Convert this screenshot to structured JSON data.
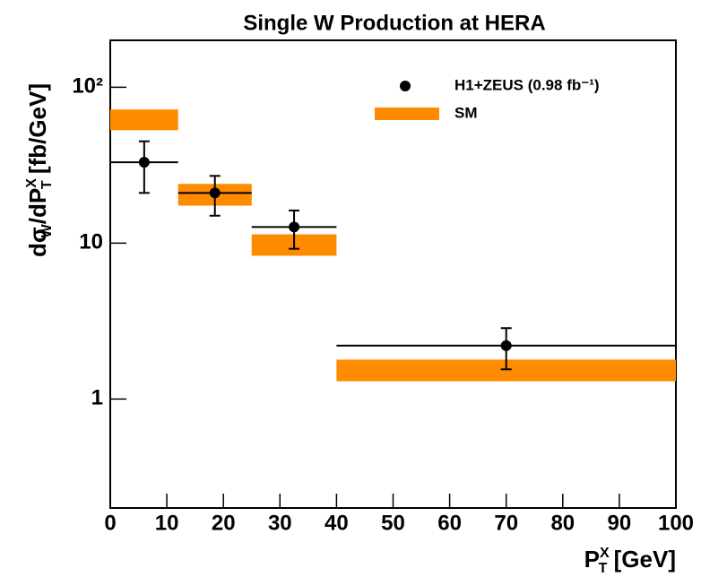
{
  "chart_data": {
    "type": "errorbar",
    "title": "Single W Production at HERA",
    "x_label": [
      {
        "text": "P"
      },
      {
        "text": "X",
        "role": "sup"
      },
      {
        "text": "T",
        "role": "sub"
      },
      {
        "text": " [GeV]"
      }
    ],
    "y_label": [
      {
        "text": "dσ"
      },
      {
        "text": "W",
        "role": "sub"
      },
      {
        "text": "/dP"
      },
      {
        "text": "X",
        "role": "sup"
      },
      {
        "text": "T",
        "role": "sub"
      },
      {
        "text": " [fb/GeV]"
      }
    ],
    "xlim": [
      0,
      100
    ],
    "xticks": [
      0,
      10,
      20,
      30,
      40,
      50,
      60,
      70,
      80,
      90,
      100
    ],
    "ylim": [
      0.2,
      200
    ],
    "yscale": "log",
    "yticks": [
      1,
      10,
      {
        "value": 100,
        "label": "10²"
      }
    ],
    "bins": [
      0,
      12,
      25,
      40,
      100
    ],
    "series": [
      {
        "name": "H1+ZEUS (0.98 fb⁻¹)",
        "color": "#000000",
        "x": [
          6,
          18.5,
          32.5,
          70
        ],
        "values": [
          33,
          21,
          12.7,
          2.2
        ],
        "errors": [
          12,
          6,
          3.5,
          0.65
        ]
      },
      {
        "name": "SM",
        "color": "#ff8c00",
        "low": [
          53,
          17.4,
          8.3,
          1.3
        ],
        "high": [
          72,
          24,
          11.4,
          1.79
        ]
      }
    ],
    "legend": "upper right"
  }
}
